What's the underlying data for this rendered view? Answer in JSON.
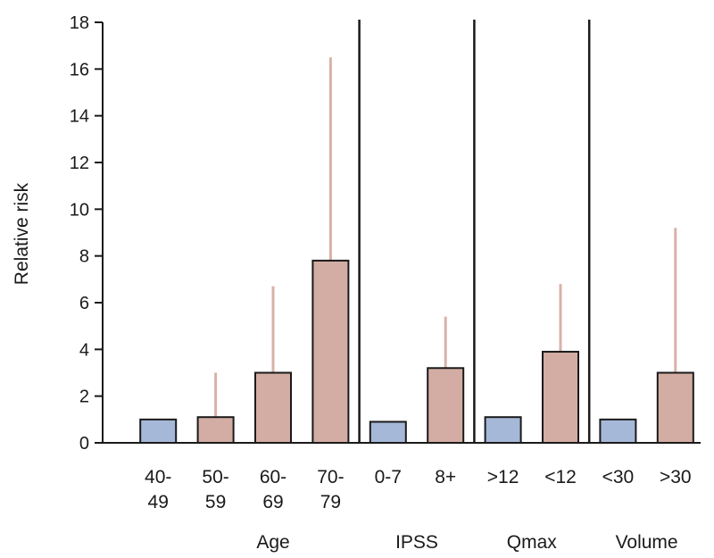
{
  "chart_data": {
    "type": "bar",
    "ylabel": "Relative risk",
    "xlabel": "",
    "ylim": [
      0,
      18
    ],
    "yticks": [
      0,
      2,
      4,
      6,
      8,
      10,
      12,
      14,
      16,
      18
    ],
    "grid": false,
    "categories": [
      {
        "line1": "40-",
        "line2": "49",
        "group": "Age",
        "value": 1.0,
        "upper": null,
        "reference": true
      },
      {
        "line1": "50-",
        "line2": "59",
        "group": "Age",
        "value": 1.1,
        "upper": 3.0,
        "reference": false
      },
      {
        "line1": "60-",
        "line2": "69",
        "group": "Age",
        "value": 3.0,
        "upper": 6.7,
        "reference": false
      },
      {
        "line1": "70-",
        "line2": "79",
        "group": "Age",
        "value": 7.8,
        "upper": 16.5,
        "reference": false
      },
      {
        "line1": "0-7",
        "line2": "",
        "group": "IPSS",
        "value": 0.9,
        "upper": null,
        "reference": true
      },
      {
        "line1": "8+",
        "line2": "",
        "group": "IPSS",
        "value": 3.2,
        "upper": 5.4,
        "reference": false
      },
      {
        "line1": ">12",
        "line2": "",
        "group": "Qmax",
        "value": 1.1,
        "upper": null,
        "reference": true
      },
      {
        "line1": "<12",
        "line2": "",
        "group": "Qmax",
        "value": 3.9,
        "upper": 6.8,
        "reference": false
      },
      {
        "line1": "<30",
        "line2": "",
        "group": "Volume",
        "value": 1.0,
        "upper": null,
        "reference": true
      },
      {
        "line1": ">30",
        "line2": "",
        "group": "Volume",
        "value": 3.0,
        "upper": 9.2,
        "reference": false
      }
    ],
    "groups": [
      "Age",
      "IPSS",
      "Qmax",
      "Volume"
    ],
    "colors": {
      "reference": "#a5b8d8",
      "risk": "#d3ada3",
      "error": "#d8b2a8",
      "outline": "#1a1a1a"
    }
  }
}
